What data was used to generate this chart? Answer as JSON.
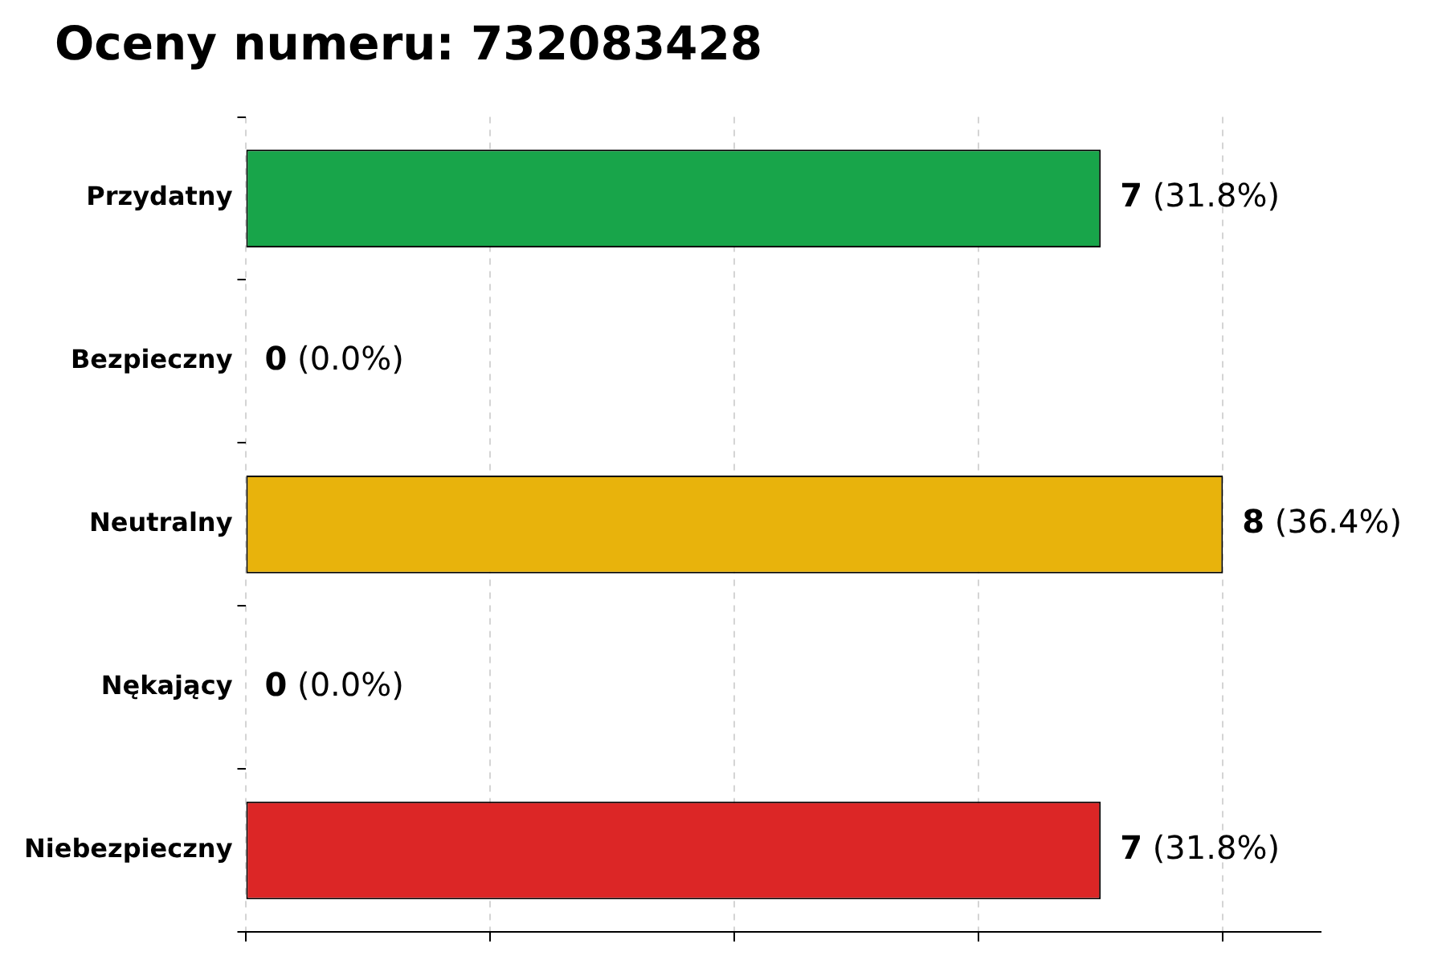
{
  "chart_data": {
    "type": "bar",
    "orientation": "horizontal",
    "title": "Oceny numeru: 732083428",
    "categories": [
      "Przydatny",
      "Bezpieczny",
      "Neutralny",
      "Nękający",
      "Niebezpieczny"
    ],
    "values": [
      7,
      0,
      8,
      0,
      7
    ],
    "colors": [
      "#18a54a",
      "#9ca3af",
      "#e8b30c",
      "#f97316",
      "#dc2626"
    ],
    "value_labels": [
      "7 (31.8%)",
      "0 (0.0%)",
      "8 (36.4%)",
      "0 (0.0%)",
      "7 (31.8%)"
    ],
    "xlim": [
      0,
      8.8
    ],
    "xticks": [
      {
        "value": 0,
        "label": null
      },
      {
        "value": 2,
        "label": null
      },
      {
        "value": 4,
        "label": null
      },
      {
        "value": 6,
        "label": null
      },
      {
        "value": 8,
        "label": null
      }
    ],
    "tick_labels": "y",
    "grid": "x"
  }
}
